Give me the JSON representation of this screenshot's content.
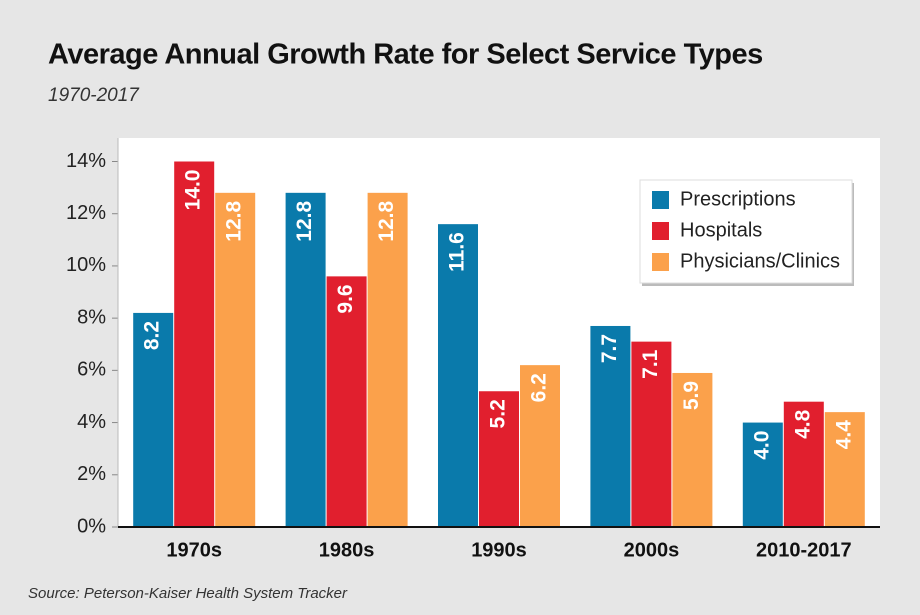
{
  "chart_data": {
    "type": "bar",
    "title": "Average Annual Growth Rate for Select Service Types",
    "subtitle": "1970-2017",
    "source": "Source: Peterson-Kaiser Health System Tracker",
    "categories": [
      "1970s",
      "1980s",
      "1990s",
      "2000s",
      "2010-2017"
    ],
    "series": [
      {
        "name": "Prescriptions",
        "color": "#0a7aab",
        "values": [
          8.2,
          12.8,
          11.6,
          7.7,
          4.0
        ],
        "value_labels": [
          "8.2",
          "12.8",
          "11.6",
          "7.7",
          "4.0"
        ]
      },
      {
        "name": "Hospitals",
        "color": "#e11f2e",
        "values": [
          14.0,
          9.6,
          5.2,
          7.1,
          4.8
        ],
        "value_labels": [
          "14.0",
          "9.6",
          "5.2",
          "7.1",
          "4.8"
        ]
      },
      {
        "name": "Physicians/Clinics",
        "color": "#fba14b",
        "values": [
          12.8,
          12.8,
          6.2,
          5.9,
          4.4
        ],
        "value_labels": [
          "12.8",
          "12.8",
          "6.2",
          "5.9",
          "4.4"
        ]
      }
    ],
    "ylim": [
      0,
      14.9
    ],
    "yticks": [
      {
        "value": 0,
        "label": "0%"
      },
      {
        "value": 2,
        "label": "2%"
      },
      {
        "value": 4,
        "label": "4%"
      },
      {
        "value": 6,
        "label": "6%"
      },
      {
        "value": 8,
        "label": "8%"
      },
      {
        "value": 10,
        "label": "10%"
      },
      {
        "value": 12,
        "label": "12%"
      },
      {
        "value": 14,
        "label": "14%"
      }
    ],
    "legend": "top-right"
  }
}
